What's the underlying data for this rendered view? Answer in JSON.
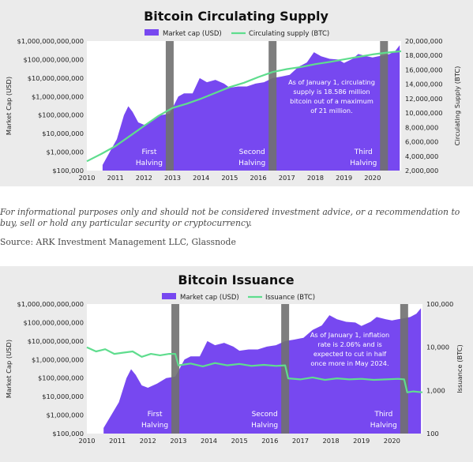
{
  "chart_data": [
    {
      "type": "area",
      "title": "Bitcoin Circulating Supply",
      "legend": [
        "Market cap (USD)",
        "Circulating supply (BTC)"
      ],
      "ylabel_left": "Market Cap (USD)",
      "ylabel_right": "Circulating Supply (BTC)",
      "x_ticks": [
        "2010",
        "2011",
        "2012",
        "2013",
        "2014",
        "2015",
        "2016",
        "2017",
        "2018",
        "2019",
        "2020"
      ],
      "y_left_ticks": [
        "$1,000,000,000,000",
        "$100,000,000,000",
        "$10,000,000,000",
        "$1,000,000,000",
        "$100,000,000",
        "$10,000,000",
        "$1,000,000",
        "$100,000"
      ],
      "y_right_ticks": [
        "20,000,000",
        "18,000,000",
        "16,000,000",
        "14,000,000",
        "12,000,000",
        "10,000,000",
        "8,000,000",
        "6,000,000",
        "4,000,000",
        "2,000,000"
      ],
      "ylim_left": [
        100000,
        1000000000000
      ],
      "ylim_right": [
        2000000,
        20000000
      ],
      "halvings": [
        {
          "date": 2012.9,
          "label_line1": "First",
          "label_line2": "Halving"
        },
        {
          "date": 2016.5,
          "label_line1": "Second",
          "label_line2": "Halving"
        },
        {
          "date": 2020.4,
          "label_line1": "Third",
          "label_line2": "Halving"
        }
      ],
      "annotation": [
        "As of January 1, circulating",
        "supply is 18.586 million",
        "bitcoin out of a maximum",
        "of 21 million."
      ],
      "series": [
        {
          "name": "Market cap (USD)",
          "axis": "left",
          "x": [
            2010.55,
            2010.8,
            2011.05,
            2011.3,
            2011.45,
            2011.6,
            2011.8,
            2012.0,
            2012.3,
            2012.6,
            2012.9,
            2013.2,
            2013.4,
            2013.7,
            2013.95,
            2014.2,
            2014.5,
            2014.8,
            2015.0,
            2015.3,
            2015.6,
            2015.9,
            2016.2,
            2016.5,
            2016.8,
            2017.1,
            2017.4,
            2017.7,
            2017.95,
            2018.2,
            2018.5,
            2018.8,
            2019.0,
            2019.3,
            2019.5,
            2019.8,
            2020.0,
            2020.2,
            2020.4,
            2020.6,
            2020.8,
            2020.95
          ],
          "values": [
            200000,
            1000000,
            5000000,
            100000000,
            300000000,
            150000000,
            40000000,
            30000000,
            50000000,
            100000000,
            120000000,
            1000000000,
            1500000000,
            1500000000,
            10000000000,
            6000000000,
            8000000000,
            5000000000,
            3000000000,
            3500000000,
            3500000000,
            5000000000,
            6000000000,
            10000000000,
            12000000000,
            15000000000,
            40000000000,
            70000000000,
            250000000000,
            150000000000,
            110000000000,
            100000000000,
            65000000000,
            110000000000,
            200000000000,
            150000000000,
            130000000000,
            150000000000,
            170000000000,
            200000000000,
            300000000000,
            600000000000
          ]
        },
        {
          "name": "Circulating supply (BTC)",
          "axis": "right",
          "x": [
            2010.0,
            2010.5,
            2011.0,
            2011.5,
            2012.0,
            2012.5,
            2013.0,
            2013.5,
            2014.0,
            2014.5,
            2015.0,
            2015.5,
            2016.0,
            2016.5,
            2017.0,
            2017.5,
            2018.0,
            2018.5,
            2019.0,
            2019.5,
            2020.0,
            2020.5,
            2021.0
          ],
          "values": [
            3300000,
            4300000,
            5400000,
            6800000,
            8200000,
            9600000,
            10700000,
            11300000,
            12000000,
            12800000,
            13600000,
            14200000,
            15000000,
            15700000,
            16100000,
            16400000,
            16800000,
            17100000,
            17450000,
            17800000,
            18150000,
            18400000,
            18586000
          ]
        }
      ]
    },
    {
      "type": "area",
      "title": "Bitcoin Issuance",
      "legend": [
        "Market cap (USD)",
        "Issuance (BTC)"
      ],
      "ylabel_left": "Market Cap (USD)",
      "ylabel_right": "Issuance (BTC)",
      "x_ticks": [
        "2010",
        "2011",
        "2012",
        "2013",
        "2014",
        "2015",
        "2016",
        "2017",
        "2018",
        "2019",
        "2020"
      ],
      "y_left_ticks": [
        "$1,000,000,000,000",
        "$100,000,000,000",
        "$10,000,000,000",
        "$1,000,000,000",
        "$100,000,000",
        "$10,000,000",
        "$1,000,000",
        "$100,000"
      ],
      "y_right_ticks": [
        "100,000",
        "10,000",
        "1,000",
        "100"
      ],
      "ylim_left": [
        100000,
        1000000000000
      ],
      "ylim_right": [
        100,
        100000
      ],
      "halvings": [
        {
          "date": 2012.9,
          "label_line1": "First",
          "label_line2": "Halving"
        },
        {
          "date": 2016.5,
          "label_line1": "Second",
          "label_line2": "Halving"
        },
        {
          "date": 2020.4,
          "label_line1": "Third",
          "label_line2": "Halving"
        }
      ],
      "annotation": [
        "As of January 1, inflation",
        "rate is 2.06% and is",
        "expected to cut in half",
        "once more in May 2024."
      ],
      "series": [
        {
          "name": "Market cap (USD)",
          "axis": "left",
          "x": [
            2010.55,
            2010.8,
            2011.05,
            2011.3,
            2011.45,
            2011.6,
            2011.8,
            2012.0,
            2012.3,
            2012.6,
            2012.9,
            2013.2,
            2013.4,
            2013.7,
            2013.95,
            2014.2,
            2014.5,
            2014.8,
            2015.0,
            2015.3,
            2015.6,
            2015.9,
            2016.2,
            2016.5,
            2016.8,
            2017.1,
            2017.4,
            2017.7,
            2017.95,
            2018.2,
            2018.5,
            2018.8,
            2019.0,
            2019.3,
            2019.5,
            2019.8,
            2020.0,
            2020.2,
            2020.4,
            2020.6,
            2020.8,
            2020.95
          ],
          "values": [
            200000,
            1000000,
            5000000,
            100000000,
            300000000,
            150000000,
            40000000,
            30000000,
            50000000,
            100000000,
            120000000,
            1000000000,
            1500000000,
            1500000000,
            10000000000,
            6000000000,
            8000000000,
            5000000000,
            3000000000,
            3500000000,
            3500000000,
            5000000000,
            6000000000,
            10000000000,
            12000000000,
            15000000000,
            40000000000,
            70000000000,
            250000000000,
            150000000000,
            110000000000,
            100000000000,
            65000000000,
            110000000000,
            200000000000,
            150000000000,
            130000000000,
            150000000000,
            170000000000,
            200000000000,
            300000000000,
            600000000000
          ]
        },
        {
          "name": "Issuance (BTC)",
          "axis": "right",
          "x": [
            2010.0,
            2010.3,
            2010.6,
            2010.9,
            2011.2,
            2011.5,
            2011.8,
            2012.1,
            2012.4,
            2012.7,
            2012.9,
            2013.0,
            2013.4,
            2013.8,
            2014.2,
            2014.6,
            2015.0,
            2015.4,
            2015.8,
            2016.2,
            2016.5,
            2016.6,
            2017.0,
            2017.4,
            2017.8,
            2018.2,
            2018.6,
            2019.0,
            2019.4,
            2019.8,
            2020.2,
            2020.4,
            2020.5,
            2020.7,
            2021.0
          ],
          "values": [
            10000,
            8000,
            9000,
            7000,
            7500,
            8000,
            6000,
            7000,
            6500,
            7000,
            7000,
            3800,
            4200,
            3600,
            4300,
            3800,
            4100,
            3700,
            3900,
            3700,
            3800,
            1900,
            1800,
            2000,
            1750,
            1900,
            1800,
            1850,
            1750,
            1800,
            1850,
            1800,
            900,
            950,
            900
          ]
        }
      ]
    }
  ],
  "caption": "For informational purposes only and should not be considered investment advice, or a recommendation to buy, sell or hold any particular security or cryptocurrency.",
  "source": "Source: ARK Investment Management LLC, Glassnode",
  "colors": {
    "market_cap": "#7748f0",
    "supply_line": "#5fdd8e",
    "halving_bar": "#707070",
    "panel_bg": "#ebebeb",
    "plot_bg": "#ffffff"
  }
}
